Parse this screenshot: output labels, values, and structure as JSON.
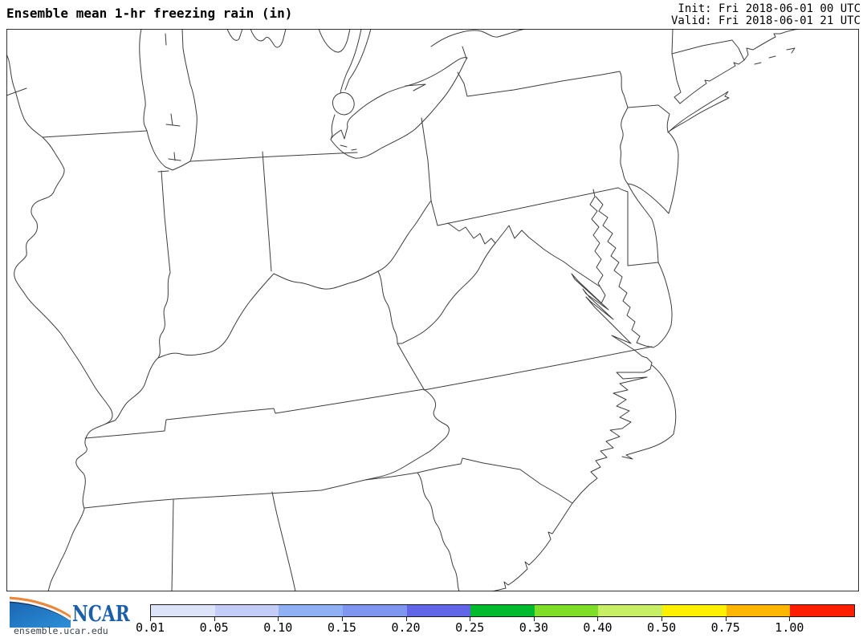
{
  "header": {
    "title": "Ensemble mean 1-hr freezing rain (in)",
    "init_label": "Init: Fri 2018-06-01 00 UTC",
    "valid_label": "Valid: Fri 2018-06-01 21 UTC"
  },
  "branding": {
    "logo_text": "NCAR",
    "logo_url_text": "ensemble.ucar.edu",
    "logo_text_color": "#1b5faa",
    "logo_navy": "#12355e",
    "logo_blue_top": "#1a67b4",
    "logo_blue_bottom": "#2e8fd6",
    "logo_orange": "#ef8632"
  },
  "colorbar": {
    "tick_labels": [
      "0.01",
      "0.05",
      "0.10",
      "0.15",
      "0.20",
      "0.25",
      "0.30",
      "0.40",
      "0.50",
      "0.75",
      "1.00"
    ],
    "segment_colors": [
      "#dde4fa",
      "#c3cdf7",
      "#8fb1f4",
      "#7f96f0",
      "#6166e8",
      "#00bb2e",
      "#7fdf28",
      "#c8ee65",
      "#fff000",
      "#ffb600",
      "#ff1f00"
    ],
    "units": "in"
  },
  "map": {
    "outline_color": "#3d3d3d",
    "frame_color": "#000000",
    "background": "#ffffff"
  }
}
